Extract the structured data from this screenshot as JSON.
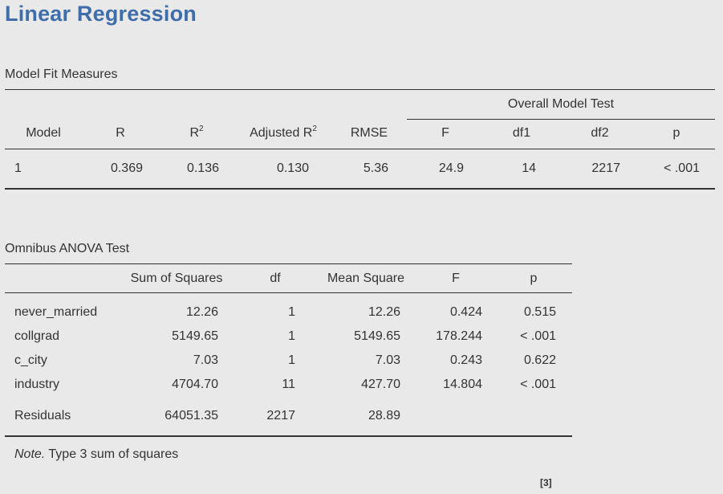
{
  "title": "Linear Regression",
  "model_fit": {
    "section_title": "Model Fit Measures",
    "group_header": "Overall Model Test",
    "columns": [
      "Model",
      "R",
      "R²",
      "Adjusted R²",
      "RMSE",
      "F",
      "df1",
      "df2",
      "p"
    ],
    "col_model": "Model",
    "col_r": "R",
    "col_r2_base": "R",
    "col_r2_sup": "2",
    "col_adjr2_base": "Adjusted R",
    "col_adjr2_sup": "2",
    "col_rmse": "RMSE",
    "col_f": "F",
    "col_df1": "df1",
    "col_df2": "df2",
    "col_p": "p",
    "row": {
      "model": "1",
      "r": "0.369",
      "r2": "0.136",
      "adj_r2": "0.130",
      "rmse": "5.36",
      "f": "24.9",
      "df1": "14",
      "df2": "2217",
      "p": "< .001"
    }
  },
  "anova": {
    "section_title": "Omnibus ANOVA Test",
    "columns": [
      "",
      "Sum of Squares",
      "df",
      "Mean Square",
      "F",
      "p"
    ],
    "rows": [
      {
        "term": "never_married",
        "ss": "12.26",
        "df": "1",
        "ms": "12.26",
        "f": "0.424",
        "p": "0.515"
      },
      {
        "term": "collgrad",
        "ss": "5149.65",
        "df": "1",
        "ms": "5149.65",
        "f": "178.244",
        "p": "< .001"
      },
      {
        "term": "c_city",
        "ss": "7.03",
        "df": "1",
        "ms": "7.03",
        "f": "0.243",
        "p": "0.622"
      },
      {
        "term": "industry",
        "ss": "4704.70",
        "df": "11",
        "ms": "427.70",
        "f": "14.804",
        "p": "< .001"
      },
      {
        "term": "Residuals",
        "ss": "64051.35",
        "df": "2217",
        "ms": "28.89",
        "f": "",
        "p": ""
      }
    ],
    "note_label": "Note.",
    "note_text": " Type 3 sum of squares"
  },
  "reference": "[3]"
}
